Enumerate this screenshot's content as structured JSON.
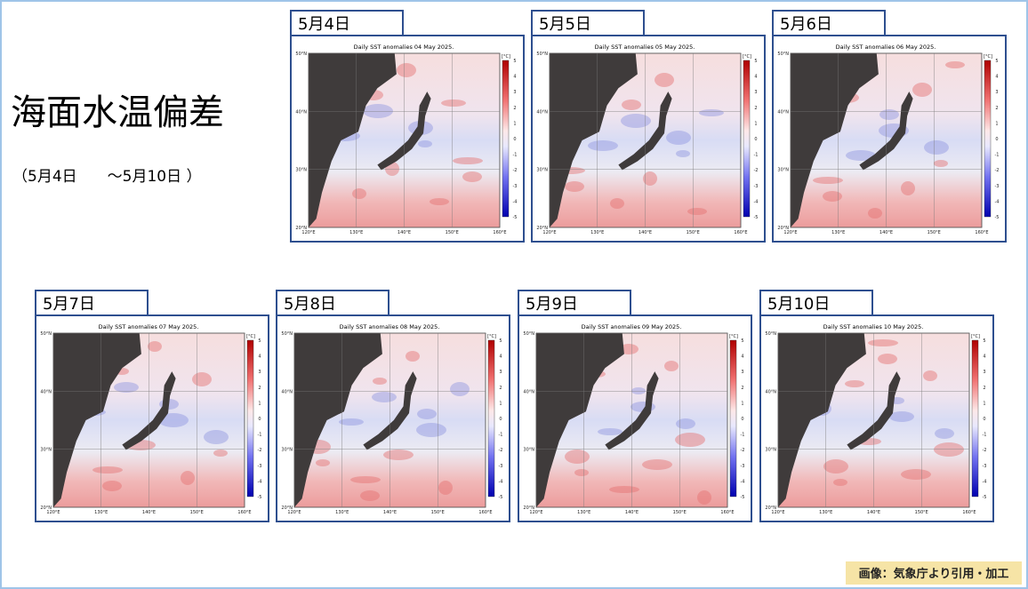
{
  "header": {
    "title": "海面水温偏差",
    "subtitle": "（5月4日　　～5月10日 ）"
  },
  "panels": [
    {
      "label": "5月4日",
      "map_title": "Daily SST anomalies 04 May 2025."
    },
    {
      "label": "5月5日",
      "map_title": "Daily SST anomalies 05 May 2025."
    },
    {
      "label": "5月6日",
      "map_title": "Daily SST anomalies 06 May 2025."
    },
    {
      "label": "5月7日",
      "map_title": "Daily SST anomalies 07 May 2025."
    },
    {
      "label": "5月8日",
      "map_title": "Daily SST anomalies 08 May 2025."
    },
    {
      "label": "5月9日",
      "map_title": "Daily SST anomalies 09 May 2025."
    },
    {
      "label": "5月10日",
      "map_title": "Daily SST anomalies 10 May 2025."
    }
  ],
  "map_axes": {
    "lat_labels": [
      "50°N",
      "40°N",
      "30°N",
      "20°N"
    ],
    "lon_labels": [
      "120°E",
      "130°E",
      "140°E",
      "150°E",
      "160°E"
    ],
    "colorbar_unit": "[°C]",
    "colorbar_ticks": [
      5,
      4,
      3,
      2,
      1,
      0,
      -1,
      -2,
      -3,
      -4,
      -5
    ]
  },
  "credit": "画像：気象庁より引用・加工"
}
